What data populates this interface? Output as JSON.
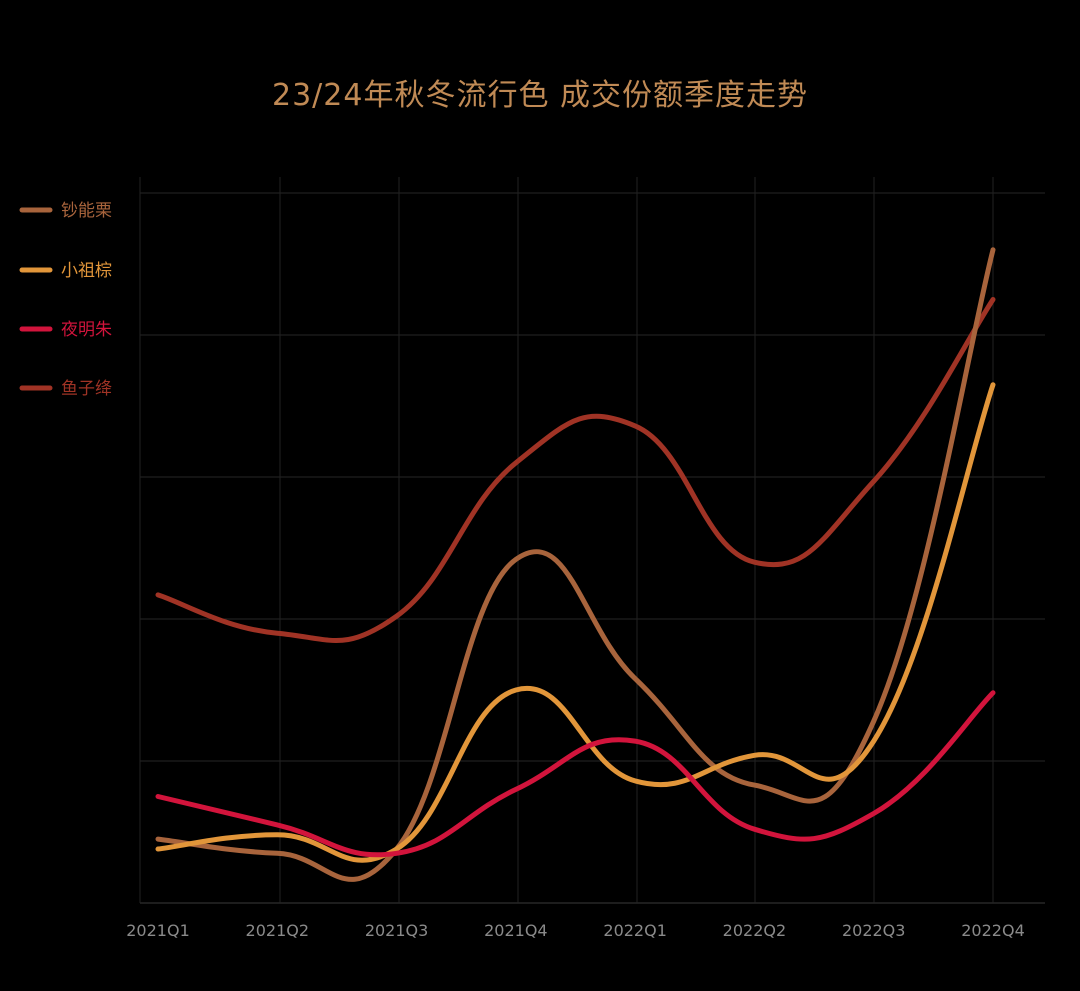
{
  "chart_data": {
    "type": "line",
    "title": "23/24年秋冬流行色 成交份额季度走势",
    "xlabel": "",
    "ylabel": "",
    "categories": [
      "2021Q1",
      "2021Q2",
      "2021Q3",
      "2021Q4",
      "2022Q1",
      "2022Q2",
      "2022Q3",
      "2022Q4"
    ],
    "ylim": [
      0,
      5
    ],
    "y_ticks_labeled": false,
    "grid": true,
    "legend_position": "left",
    "smooth": true,
    "series": [
      {
        "name": "钞能栗",
        "color": "#a8643c",
        "values": [
          0.45,
          0.35,
          0.38,
          2.42,
          1.58,
          0.83,
          1.28,
          4.6
        ]
      },
      {
        "name": "小祖棕",
        "color": "#e2963a",
        "values": [
          0.38,
          0.48,
          0.38,
          1.5,
          0.86,
          1.04,
          1.14,
          3.65
        ]
      },
      {
        "name": "夜明朱",
        "color": "#d2143c",
        "values": [
          0.75,
          0.55,
          0.35,
          0.8,
          1.14,
          0.52,
          0.63,
          1.48
        ]
      },
      {
        "name": "鱼子绛",
        "color": "#a03325",
        "values": [
          2.17,
          1.9,
          2.02,
          3.1,
          3.36,
          2.4,
          2.97,
          4.25
        ]
      }
    ]
  }
}
